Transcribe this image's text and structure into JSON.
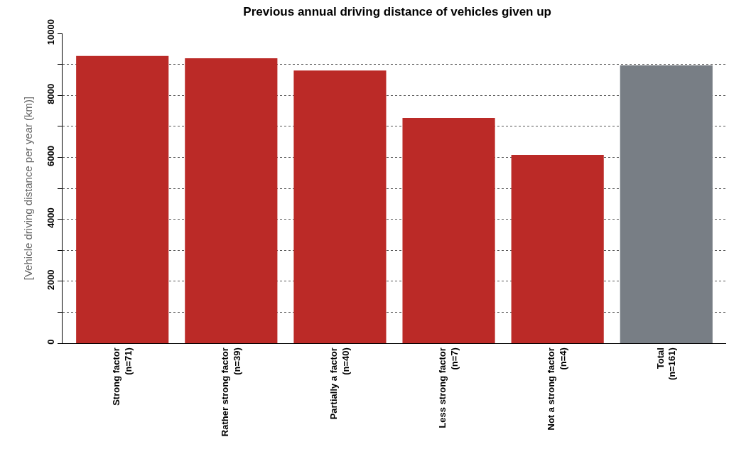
{
  "chart_data": {
    "type": "bar",
    "title": "Previous annual driving distance of vehicles given up",
    "ylabel": "[Vehicle driving distance per year (km)]",
    "categories": [
      "Strong factor\n(n=71)",
      "Rather strong factor\n(n=39)",
      "Partially a factor\n(n=40)",
      "Less strong factor\n(n=7)",
      "Not a strong factor\n(n=4)",
      "Total\n(n=161)"
    ],
    "values": [
      9270,
      9200,
      8800,
      7270,
      6080,
      8970
    ],
    "colors": [
      "#bb2a27",
      "#bb2a27",
      "#bb2a27",
      "#bb2a27",
      "#bb2a27",
      "#787e85"
    ],
    "ylim": [
      0,
      10000
    ],
    "yticks": [
      0,
      {
        "value": 1000,
        "label": null
      },
      2000,
      {
        "value": 3000,
        "label": null
      },
      4000,
      {
        "value": 5000,
        "label": null
      },
      6000,
      {
        "value": 7000,
        "label": null
      },
      8000,
      {
        "value": 9000,
        "label": null
      },
      10000
    ],
    "grid": "y",
    "legend": false
  }
}
